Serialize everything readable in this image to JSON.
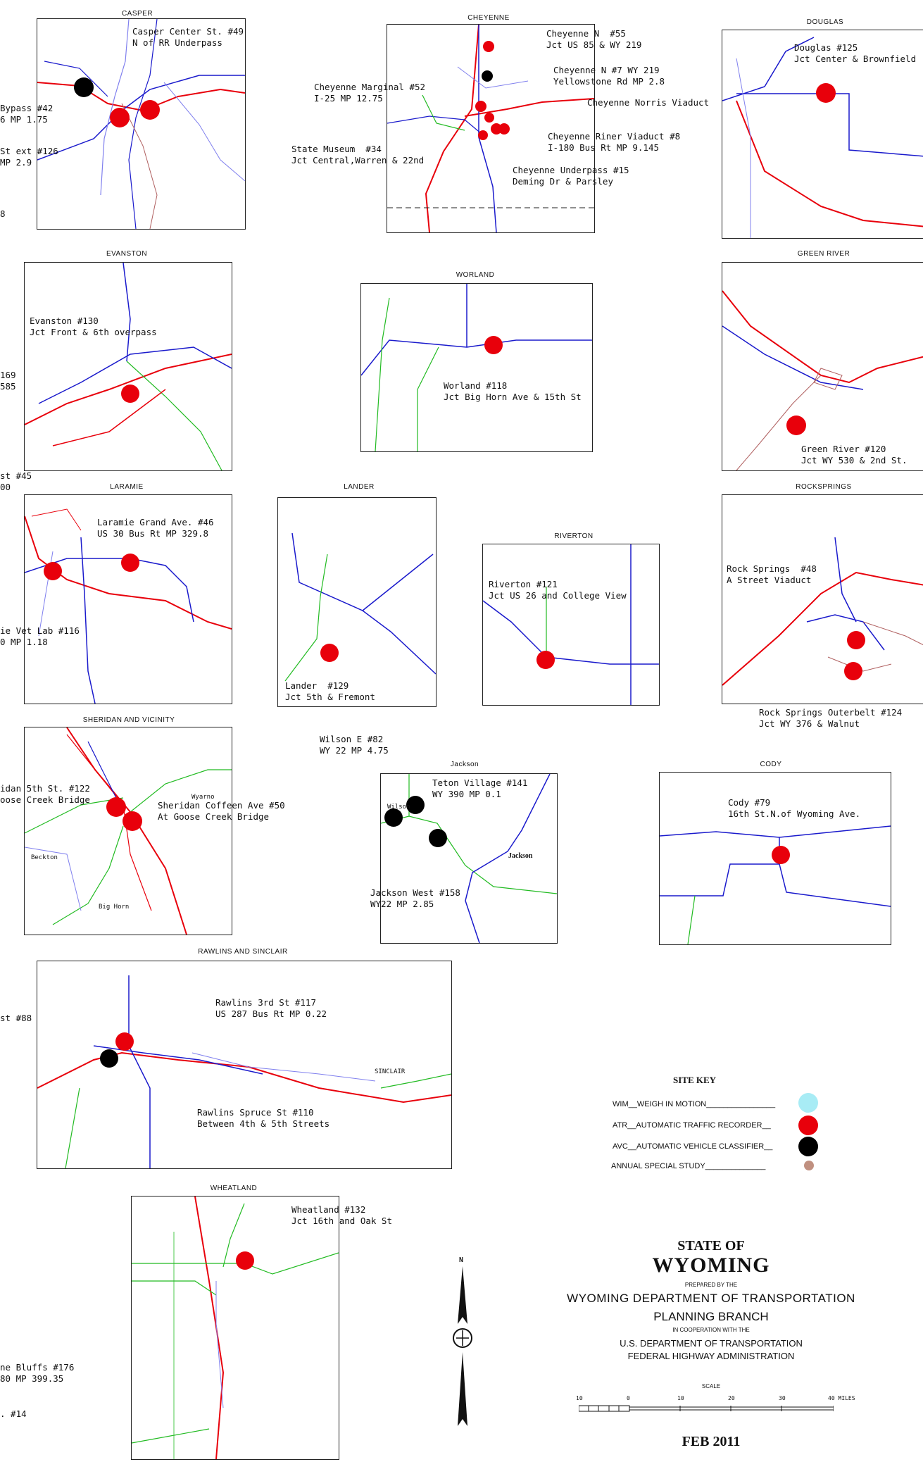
{
  "colors": {
    "atr": "#e8000b",
    "avc": "#000000",
    "wim": "#a8ecf5",
    "special": "#c09080",
    "interstate": "#e8000b",
    "us_route": "#1a1acc",
    "state_route": "#22bb22",
    "business": "#8080ee"
  },
  "panels": {
    "casper": {
      "title": "CASPER",
      "labels": [
        "Casper Center St. #49\nN of RR Underpass",
        "Bypass #42\n6 MP 1.75",
        "St ext #126\nMP 2.9",
        "8"
      ]
    },
    "cheyenne": {
      "title": "CHEYENNE",
      "labels": [
        "Cheyenne N  #55\nJct US 85 & WY 219",
        "Cheyenne N #7 WY 219\nYellowstone Rd MP 2.8",
        "Cheyenne Marginal #52\nI-25 MP 12.75",
        "Cheyenne Norris Viaduct",
        "Cheyenne Riner Viaduct #8\nI-180 Bus Rt MP 9.145",
        "State Museum  #34\nJct Central,Warren & 22nd",
        "Cheyenne Underpass #15\nDeming Dr & Parsley"
      ]
    },
    "douglas": {
      "title": "DOUGLAS",
      "labels": [
        "Douglas #125\nJct Center & Brownfield"
      ]
    },
    "evanston": {
      "title": "EVANSTON",
      "labels": [
        "Evanston #130\nJct Front & 6th overpass",
        "169\n585",
        "st #45\n00"
      ]
    },
    "worland": {
      "title": "WORLAND",
      "labels": [
        "Worland #118\nJct Big Horn Ave & 15th St"
      ]
    },
    "green_river": {
      "title": "GREEN RIVER",
      "labels": [
        "Green River #120\nJct WY 530 & 2nd St."
      ]
    },
    "laramie": {
      "title": "LARAMIE",
      "labels": [
        "Laramie Grand Ave. #46\nUS 30 Bus Rt MP 329.8",
        "ie Vet Lab #116\n0 MP 1.18"
      ]
    },
    "lander": {
      "title": "LANDER",
      "labels": [
        "Lander  #129\nJct 5th & Fremont"
      ]
    },
    "riverton": {
      "title": "RIVERTON",
      "labels": [
        "Riverton #121\nJct US 26 and College View"
      ]
    },
    "rocksprings": {
      "title": "ROCKSPRINGS",
      "labels": [
        "Rock Springs  #48\nA Street Viaduct",
        "Rock Springs Outerbelt #124\nJct WY 376 & Walnut"
      ]
    },
    "sheridan": {
      "title": "SHERIDAN AND VICINITY",
      "labels": [
        "idan 5th St. #122\noose Creek Bridge",
        "Sheridan Coffeen Ave #50\nAt Goose Creek Bridge",
        "Beckton",
        "Big Horn",
        "Wyarno"
      ]
    },
    "jackson": {
      "title": "Jackson",
      "labels": [
        "Wilson E #82\nWY 22 MP 4.75",
        "Teton Village #141\nWY 390 MP 0.1",
        "Jackson West #158\nWY22 MP 2.85",
        "Wilson",
        "Jackson"
      ]
    },
    "cody": {
      "title": "CODY",
      "labels": [
        "Cody #79\n16th St.N.of Wyoming Ave."
      ]
    },
    "rawlins": {
      "title": "RAWLINS AND SINCLAIR",
      "labels": [
        "Rawlins 3rd St #117\nUS 287 Bus Rt MP 0.22",
        "Rawlins Spruce St #110\nBetween 4th & 5th Streets",
        "SINCLAIR",
        "st #88"
      ]
    },
    "wheatland": {
      "title": "WHEATLAND",
      "labels": [
        "Wheatland #132\nJct 16th and Oak St"
      ]
    }
  },
  "edge_labels": {
    "cheyenne_bluffs": "ne Bluffs #176\n80 MP 399.35",
    "num14": ". #14"
  },
  "site_key": {
    "title": "SITE KEY",
    "items": [
      "WIM__WEIGH IN MOTION________________",
      "ATR__AUTOMATIC TRAFFIC RECORDER__",
      "AVC__AUTOMATIC VEHICLE CLASSIFIER__",
      "ANNUAL SPECIAL STUDY______________"
    ]
  },
  "title_block": {
    "state_of": "STATE OF",
    "wyoming": "WYOMING",
    "prepared_by": "PREPARED BY THE",
    "dept": "WYOMING DEPARTMENT OF TRANSPORTATION",
    "branch": "PLANNING BRANCH",
    "cooperation": "IN COOPERATION WITH THE",
    "usdot": "U.S. DEPARTMENT OF TRANSPORTATION",
    "fhwa": "FEDERAL HIGHWAY ADMINISTRATION",
    "scale": "SCALE",
    "scale_ticks": [
      "10",
      "0",
      "10",
      "20",
      "30",
      "40 MILES"
    ],
    "date": "FEB 2011",
    "north": "N"
  }
}
